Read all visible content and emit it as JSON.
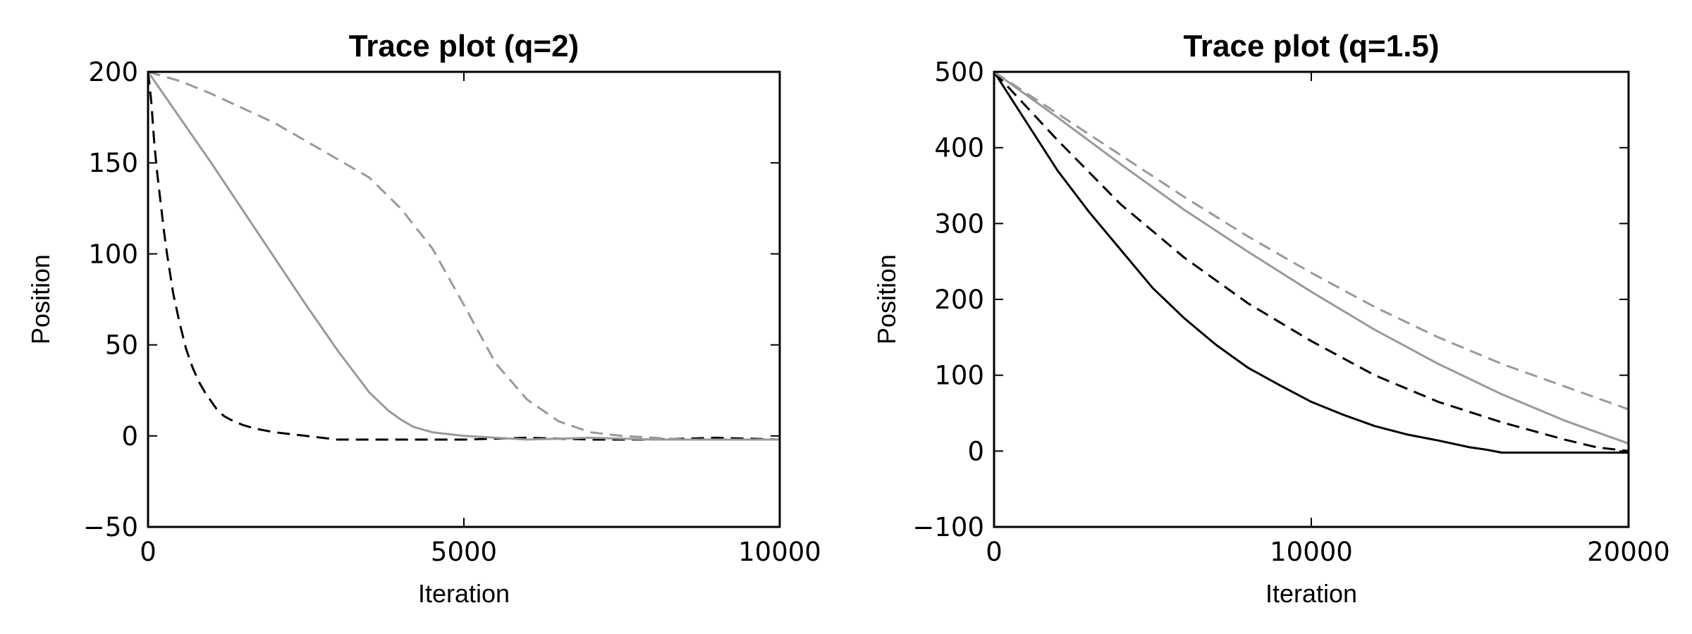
{
  "chart_data": [
    {
      "type": "line",
      "title": "Trace plot (q=2)",
      "xlabel": "Iteration",
      "ylabel": "Position",
      "xlim": [
        0,
        10000
      ],
      "ylim": [
        -50,
        200
      ],
      "xticks": [
        0,
        5000,
        10000
      ],
      "yticks": [
        -50,
        0,
        50,
        100,
        150,
        200
      ],
      "xtick_labels": [
        "0",
        "5000",
        "10000"
      ],
      "ytick_labels": [
        "−50",
        "0",
        "50",
        "100",
        "150",
        "200"
      ],
      "grid": false,
      "legend": "none",
      "series": [
        {
          "color": "#000000",
          "dash": "dashed",
          "x": [
            0,
            50,
            100,
            150,
            200,
            250,
            300,
            400,
            500,
            600,
            700,
            800,
            900,
            1000,
            1100,
            1200,
            1300,
            1500,
            1700,
            2000,
            2500,
            3000,
            4000,
            5000,
            6000,
            7000,
            8000,
            9000,
            10000
          ],
          "y": [
            200,
            184,
            160,
            143,
            128,
            113,
            100,
            78,
            62,
            48,
            38,
            30,
            24,
            19,
            14,
            11,
            9,
            6,
            4,
            2,
            0,
            -2,
            -2,
            -2,
            -1,
            -2,
            -2,
            -1,
            -2
          ]
        },
        {
          "color": "#999999",
          "dash": "solid",
          "x": [
            0,
            500,
            1000,
            1500,
            2000,
            2500,
            3000,
            3500,
            3800,
            4000,
            4200,
            4500,
            5000,
            5500,
            6000,
            7000,
            8000,
            9000,
            10000
          ],
          "y": [
            200,
            175,
            150,
            124,
            98,
            72,
            47,
            24,
            14,
            9,
            5,
            2,
            0,
            -1,
            -2,
            -1,
            -2,
            -2,
            -2
          ]
        },
        {
          "color": "#999999",
          "dash": "dashed",
          "x": [
            0,
            500,
            1000,
            1500,
            2000,
            2500,
            3000,
            3500,
            4000,
            4500,
            5000,
            5500,
            6000,
            6500,
            7000,
            7500,
            8000,
            8500,
            9000,
            10000
          ],
          "y": [
            200,
            195,
            188,
            180,
            172,
            162,
            152,
            142,
            125,
            103,
            72,
            40,
            20,
            8,
            2,
            0,
            -1,
            -2,
            -2,
            -2
          ]
        }
      ]
    },
    {
      "type": "line",
      "title": "Trace plot (q=1.5)",
      "xlabel": "Iteration",
      "ylabel": "Position",
      "xlim": [
        0,
        20000
      ],
      "ylim": [
        -100,
        500
      ],
      "xticks": [
        0,
        10000,
        20000
      ],
      "yticks": [
        -100,
        0,
        100,
        200,
        300,
        400,
        500
      ],
      "xtick_labels": [
        "0",
        "10000",
        "20000"
      ],
      "ytick_labels": [
        "−100",
        "0",
        "100",
        "200",
        "300",
        "400",
        "500"
      ],
      "grid": false,
      "legend": "none",
      "series": [
        {
          "color": "#000000",
          "dash": "solid",
          "x": [
            0,
            1000,
            2000,
            3000,
            4000,
            5000,
            6000,
            7000,
            8000,
            9000,
            10000,
            11000,
            12000,
            13000,
            14000,
            15000,
            15500,
            16000,
            17000,
            18000,
            19000,
            20000
          ],
          "y": [
            500,
            435,
            370,
            315,
            265,
            215,
            175,
            140,
            110,
            87,
            65,
            48,
            33,
            22,
            14,
            5,
            2,
            -2,
            -2,
            -2,
            -2,
            -2
          ]
        },
        {
          "color": "#000000",
          "dash": "dashed",
          "x": [
            0,
            2000,
            4000,
            6000,
            8000,
            10000,
            12000,
            14000,
            16000,
            18000,
            19000,
            20000
          ],
          "y": [
            500,
            410,
            325,
            255,
            195,
            145,
            100,
            65,
            38,
            15,
            5,
            0
          ]
        },
        {
          "color": "#999999",
          "dash": "solid",
          "x": [
            0,
            2000,
            4000,
            6000,
            8000,
            10000,
            12000,
            14000,
            16000,
            18000,
            20000
          ],
          "y": [
            500,
            440,
            378,
            318,
            263,
            210,
            160,
            115,
            75,
            40,
            10
          ]
        },
        {
          "color": "#999999",
          "dash": "dashed",
          "x": [
            0,
            2000,
            4000,
            6000,
            8000,
            10000,
            12000,
            14000,
            16000,
            18000,
            20000
          ],
          "y": [
            500,
            445,
            390,
            335,
            283,
            235,
            190,
            150,
            115,
            85,
            55
          ]
        }
      ]
    }
  ]
}
